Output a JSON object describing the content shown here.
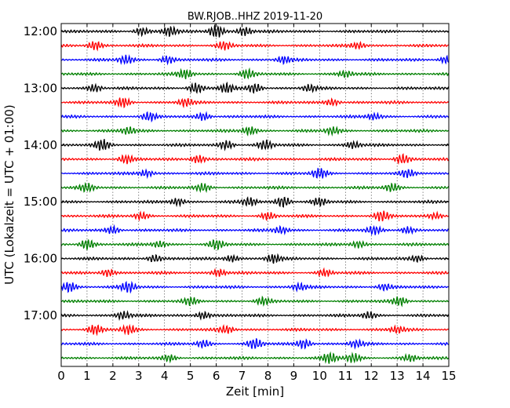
{
  "chart_data": {
    "type": "line",
    "title": "BW.RJOB..HHZ 2019-11-20",
    "xlabel": "Zeit  [min]",
    "ylabel": "UTC (Lokalzeit = UTC + 01:00)",
    "xlim": [
      0,
      15
    ],
    "x_ticks": [
      "0",
      "1",
      "2",
      "3",
      "4",
      "5",
      "6",
      "7",
      "8",
      "9",
      "10",
      "11",
      "12",
      "13",
      "14",
      "15"
    ],
    "y_tick_labels": [
      "12:00",
      "13:00",
      "14:00",
      "15:00",
      "16:00",
      "17:00"
    ],
    "grid": "vertical dotted",
    "trace_colors": [
      "#000000",
      "#ff0000",
      "#0000ff",
      "#008000"
    ],
    "traces": [
      {
        "start": "12:00",
        "bursts": [
          [
            6.0,
            1.0
          ],
          [
            4.2,
            0.7
          ],
          [
            7.1,
            0.65
          ],
          [
            3.1,
            0.55
          ]
        ]
      },
      {
        "start": "12:15",
        "bursts": [
          [
            1.3,
            0.65
          ],
          [
            6.3,
            0.55
          ],
          [
            11.5,
            0.45
          ]
        ]
      },
      {
        "start": "12:30",
        "bursts": [
          [
            2.5,
            0.6
          ],
          [
            4.1,
            0.55
          ],
          [
            8.6,
            0.5
          ],
          [
            14.9,
            0.5
          ]
        ]
      },
      {
        "start": "12:45",
        "bursts": [
          [
            4.8,
            0.65
          ],
          [
            7.2,
            0.6
          ],
          [
            11.0,
            0.45
          ]
        ]
      },
      {
        "start": "13:00",
        "bursts": [
          [
            5.2,
            0.75
          ],
          [
            6.4,
            0.7
          ],
          [
            7.5,
            0.65
          ],
          [
            9.6,
            0.5
          ],
          [
            1.3,
            0.55
          ]
        ]
      },
      {
        "start": "13:15",
        "bursts": [
          [
            2.4,
            0.65
          ],
          [
            4.8,
            0.55
          ],
          [
            10.5,
            0.5
          ]
        ]
      },
      {
        "start": "13:30",
        "bursts": [
          [
            3.4,
            0.55
          ],
          [
            5.5,
            0.6
          ],
          [
            12.1,
            0.45
          ]
        ]
      },
      {
        "start": "13:45",
        "bursts": [
          [
            2.6,
            0.5
          ],
          [
            7.3,
            0.6
          ],
          [
            10.5,
            0.5
          ]
        ]
      },
      {
        "start": "14:00",
        "bursts": [
          [
            1.6,
            0.75
          ],
          [
            6.4,
            0.65
          ],
          [
            7.9,
            0.65
          ],
          [
            11.3,
            0.5
          ]
        ]
      },
      {
        "start": "14:15",
        "bursts": [
          [
            2.5,
            0.6
          ],
          [
            5.3,
            0.6
          ],
          [
            13.2,
            0.7
          ]
        ]
      },
      {
        "start": "14:30",
        "bursts": [
          [
            10.0,
            0.7
          ],
          [
            3.3,
            0.5
          ],
          [
            13.4,
            0.5
          ]
        ]
      },
      {
        "start": "14:45",
        "bursts": [
          [
            1.0,
            0.55
          ],
          [
            5.5,
            0.55
          ],
          [
            12.8,
            0.55
          ]
        ]
      },
      {
        "start": "15:00",
        "bursts": [
          [
            8.6,
            0.8
          ],
          [
            7.3,
            0.6
          ],
          [
            4.5,
            0.55
          ],
          [
            10.0,
            0.55
          ]
        ]
      },
      {
        "start": "15:15",
        "bursts": [
          [
            12.4,
            0.7
          ],
          [
            3.1,
            0.5
          ],
          [
            8.0,
            0.5
          ],
          [
            14.5,
            0.45
          ]
        ]
      },
      {
        "start": "15:30",
        "bursts": [
          [
            2.0,
            0.55
          ],
          [
            8.5,
            0.5
          ],
          [
            12.1,
            0.55
          ],
          [
            13.4,
            0.5
          ]
        ]
      },
      {
        "start": "15:45",
        "bursts": [
          [
            1.0,
            0.75
          ],
          [
            6.0,
            0.65
          ],
          [
            11.5,
            0.5
          ],
          [
            3.8,
            0.45
          ]
        ]
      },
      {
        "start": "16:00",
        "bursts": [
          [
            8.2,
            0.65
          ],
          [
            3.6,
            0.55
          ],
          [
            6.6,
            0.5
          ],
          [
            13.8,
            0.45
          ]
        ]
      },
      {
        "start": "16:15",
        "bursts": [
          [
            1.8,
            0.55
          ],
          [
            6.1,
            0.55
          ],
          [
            10.2,
            0.45
          ]
        ]
      },
      {
        "start": "16:30",
        "bursts": [
          [
            0.3,
            0.75
          ],
          [
            2.6,
            0.75
          ],
          [
            9.2,
            0.5
          ],
          [
            12.5,
            0.45
          ]
        ]
      },
      {
        "start": "16:45",
        "bursts": [
          [
            13.1,
            0.65
          ],
          [
            5.0,
            0.5
          ],
          [
            7.8,
            0.5
          ]
        ]
      },
      {
        "start": "17:00",
        "bursts": [
          [
            2.4,
            0.6
          ],
          [
            5.5,
            0.55
          ],
          [
            11.9,
            0.5
          ]
        ]
      },
      {
        "start": "17:15",
        "bursts": [
          [
            1.3,
            0.65
          ],
          [
            2.6,
            0.6
          ],
          [
            6.4,
            0.5
          ],
          [
            13.0,
            0.45
          ]
        ]
      },
      {
        "start": "17:30",
        "bursts": [
          [
            7.5,
            0.7
          ],
          [
            9.4,
            0.7
          ],
          [
            5.5,
            0.5
          ],
          [
            11.4,
            0.5
          ]
        ]
      },
      {
        "start": "17:45",
        "bursts": [
          [
            10.4,
            0.7
          ],
          [
            11.3,
            0.65
          ],
          [
            4.2,
            0.45
          ],
          [
            13.5,
            0.45
          ]
        ]
      }
    ]
  }
}
